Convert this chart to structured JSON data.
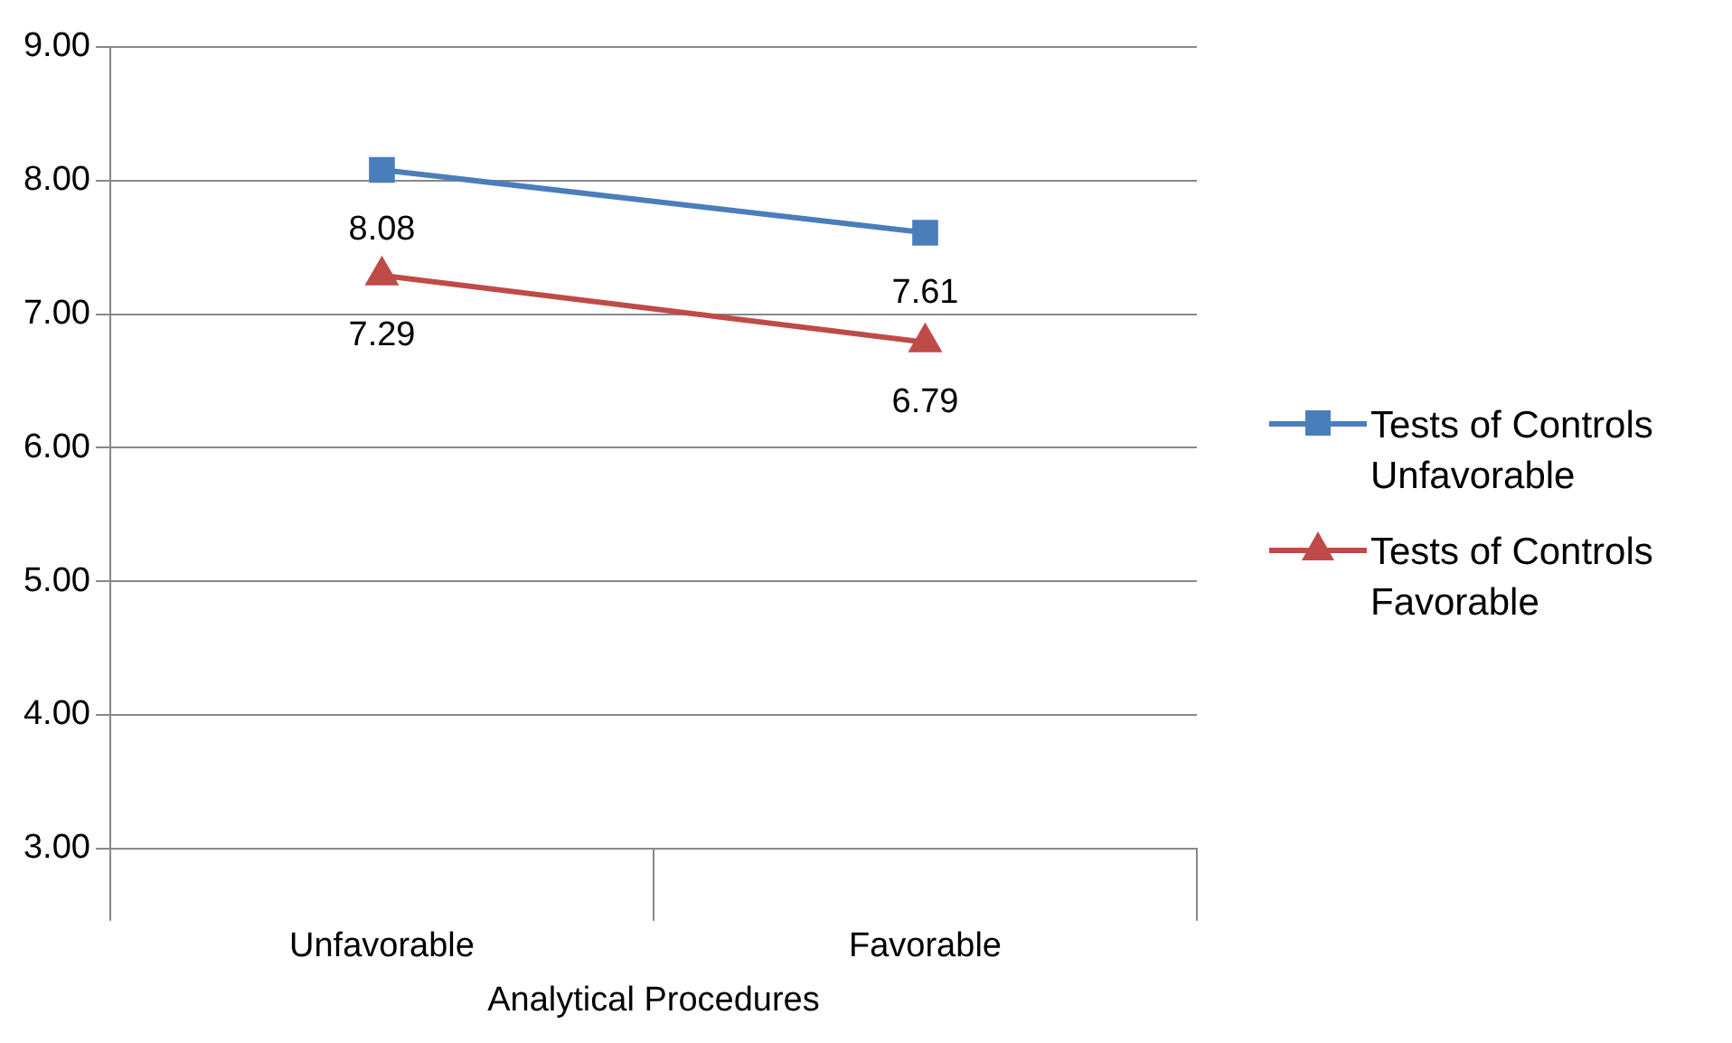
{
  "chart_data": {
    "type": "line",
    "xlabel": "Analytical Procedures",
    "categories": [
      "Unfavorable",
      "Favorable"
    ],
    "series": [
      {
        "name": "Tests of Controls Unfavorable",
        "color": "#4a7ebb",
        "values": [
          8.08,
          7.61
        ],
        "marker": "square"
      },
      {
        "name": "Tests of Controls Favorable",
        "color": "#be4b48",
        "values": [
          7.29,
          6.79
        ],
        "marker": "triangle"
      }
    ],
    "ylim": [
      3,
      9
    ],
    "yticks": [
      {
        "value": 3,
        "label": "3.00"
      },
      {
        "value": 4,
        "label": "4.00"
      },
      {
        "value": 5,
        "label": "5.00"
      },
      {
        "value": 6,
        "label": "6.00"
      },
      {
        "value": 7,
        "label": "7.00"
      },
      {
        "value": 8,
        "label": "8.00"
      },
      {
        "value": 9,
        "label": "9.00"
      }
    ],
    "grid": "y",
    "legend": "right",
    "data_labels": true,
    "line_style": "solid"
  }
}
